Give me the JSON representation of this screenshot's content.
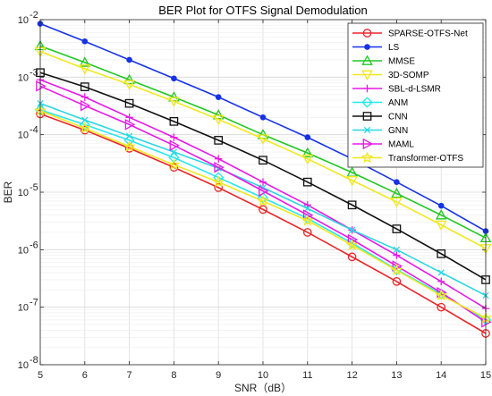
{
  "chart_data": {
    "type": "line",
    "title": "BER Plot for OTFS Signal Demodulation",
    "xlabel": "SNR（dB）",
    "ylabel": "BER",
    "xlim": [
      5,
      15
    ],
    "ylim": [
      1e-08,
      0.01
    ],
    "yscale": "log",
    "grid": true,
    "legend_position": "top-right",
    "x": [
      5,
      6,
      7,
      8,
      9,
      10,
      11,
      12,
      13,
      14,
      15
    ],
    "x_tick_labels": [
      "5",
      "6",
      "7",
      "8",
      "9",
      "10",
      "11",
      "12",
      "13",
      "14",
      "15"
    ],
    "y_ticks": [
      {
        "value": 1e-08,
        "base": "10",
        "exp": "-8"
      },
      {
        "value": 1e-07,
        "base": "10",
        "exp": "-7"
      },
      {
        "value": 1e-06,
        "base": "10",
        "exp": "-6"
      },
      {
        "value": 1e-05,
        "base": "10",
        "exp": "-5"
      },
      {
        "value": 0.0001,
        "base": "10",
        "exp": "-4"
      },
      {
        "value": 0.001,
        "base": "10",
        "exp": "-3"
      },
      {
        "value": 0.01,
        "base": "10",
        "exp": "-2"
      }
    ],
    "series": [
      {
        "name": "SPARSE-OTFS-Net",
        "color": "#e8262a",
        "marker": "circle",
        "values": [
          0.00023,
          0.00012,
          5.8e-05,
          2.7e-05,
          1.2e-05,
          5e-06,
          2e-06,
          7.5e-07,
          2.8e-07,
          1e-07,
          3.5e-08
        ]
      },
      {
        "name": "LS",
        "color": "#1632e6",
        "marker": "dot",
        "values": [
          0.0085,
          0.0042,
          0.002,
          0.00095,
          0.00045,
          0.0002,
          9e-05,
          3.8e-05,
          1.5e-05,
          5.8e-06,
          2.1e-06
        ]
      },
      {
        "name": "MMSE",
        "color": "#22c722",
        "marker": "triangle-up",
        "values": [
          0.0035,
          0.0018,
          0.0009,
          0.00045,
          0.00022,
          0.0001,
          4.8e-05,
          2.2e-05,
          9.5e-06,
          4e-06,
          1.6e-06
        ]
      },
      {
        "name": "3D-SOMP",
        "color": "#f0e81e",
        "marker": "triangle-down",
        "values": [
          0.0028,
          0.0014,
          0.00075,
          0.00038,
          0.000185,
          8.5e-05,
          3.8e-05,
          1.6e-05,
          6.8e-06,
          2.7e-06,
          1.05e-06
        ]
      },
      {
        "name": "SBL-d-LSMR",
        "color": "#e619e6",
        "marker": "plus",
        "values": [
          0.0009,
          0.00045,
          0.0002,
          9e-05,
          3.8e-05,
          1.5e-05,
          6e-06,
          2.2e-06,
          8e-07,
          2.8e-07,
          9.5e-08
        ]
      },
      {
        "name": "ANM",
        "color": "#26e8e8",
        "marker": "diamond",
        "values": [
          0.00027,
          0.00015,
          8e-05,
          4e-05,
          1.8e-05,
          8e-06,
          3.5e-06,
          1.3e-06,
          4.5e-07,
          1.7e-07,
          6e-08
        ]
      },
      {
        "name": "CNN",
        "color": "#111111",
        "marker": "square",
        "values": [
          0.0012,
          0.00068,
          0.00035,
          0.00017,
          8e-05,
          3.6e-05,
          1.5e-05,
          6e-06,
          2.3e-06,
          8.5e-07,
          3e-07
        ]
      },
      {
        "name": "GNN",
        "color": "#2cd6e2",
        "marker": "x",
        "values": [
          0.00035,
          0.00018,
          9.5e-05,
          5e-05,
          2.6e-05,
          1.2e-05,
          5.2e-06,
          2.2e-06,
          1e-06,
          4e-07,
          1.6e-07
        ]
      },
      {
        "name": "MAML",
        "color": "#e619e6",
        "marker": "triangle-right",
        "values": [
          0.0007,
          0.00032,
          0.00015,
          6.5e-05,
          2.7e-05,
          1.05e-05,
          4e-06,
          1.5e-06,
          5.2e-07,
          1.8e-07,
          5.5e-08
        ]
      },
      {
        "name": "Transformer-OTFS",
        "color": "#f0e81e",
        "marker": "star",
        "values": [
          0.00026,
          0.00013,
          6.2e-05,
          3e-05,
          1.5e-05,
          7e-06,
          3.2e-06,
          1.2e-06,
          4.4e-07,
          1.6e-07,
          6.5e-08
        ]
      }
    ]
  }
}
